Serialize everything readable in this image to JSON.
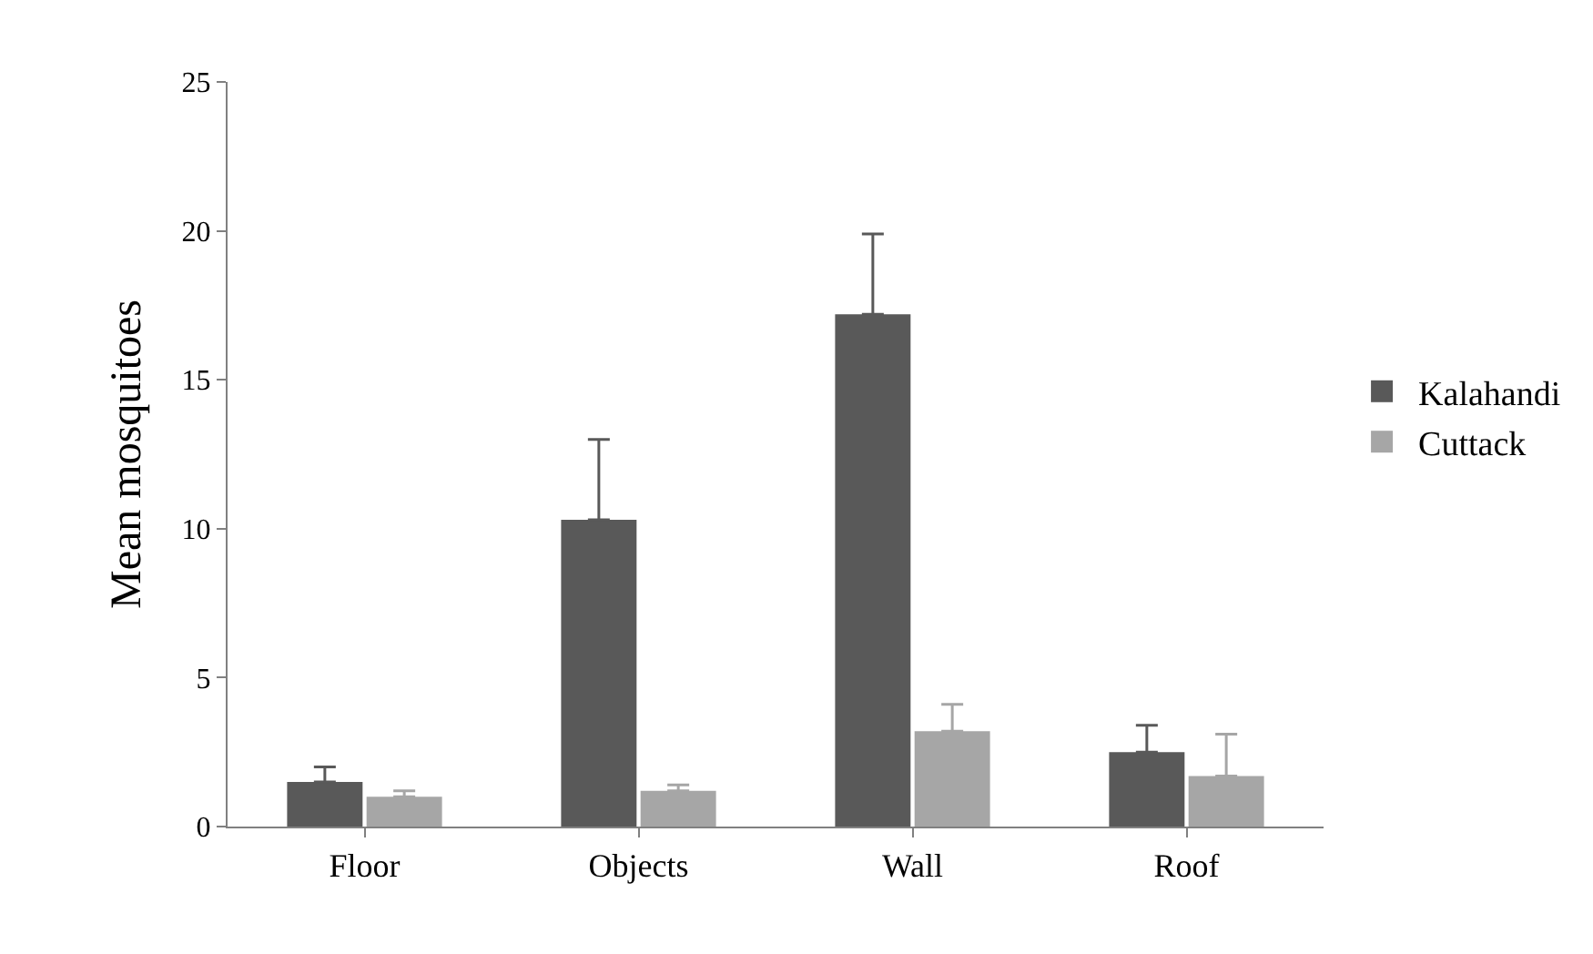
{
  "chart_data": {
    "type": "bar",
    "ylabel": "Mean mosquitoes",
    "categories": [
      "Floor",
      "Objects",
      "Wall",
      "Roof"
    ],
    "series": [
      {
        "name": "Kalahandi",
        "color": "#595959",
        "values": [
          1.5,
          10.3,
          17.2,
          2.5
        ],
        "errors": [
          [
            1.5,
            2.0
          ],
          [
            10.3,
            13.0
          ],
          [
            17.2,
            19.9
          ],
          [
            2.5,
            3.4
          ]
        ]
      },
      {
        "name": "Cuttack",
        "color": "#a6a6a6",
        "values": [
          1.0,
          1.2,
          3.2,
          1.7
        ],
        "errors": [
          [
            1.0,
            1.2
          ],
          [
            1.2,
            1.4
          ],
          [
            3.2,
            4.1
          ],
          [
            1.7,
            3.1
          ]
        ]
      }
    ],
    "ylim": [
      0,
      25
    ],
    "yticks": [
      0,
      5,
      10,
      15,
      20,
      25
    ],
    "legend": "right"
  }
}
